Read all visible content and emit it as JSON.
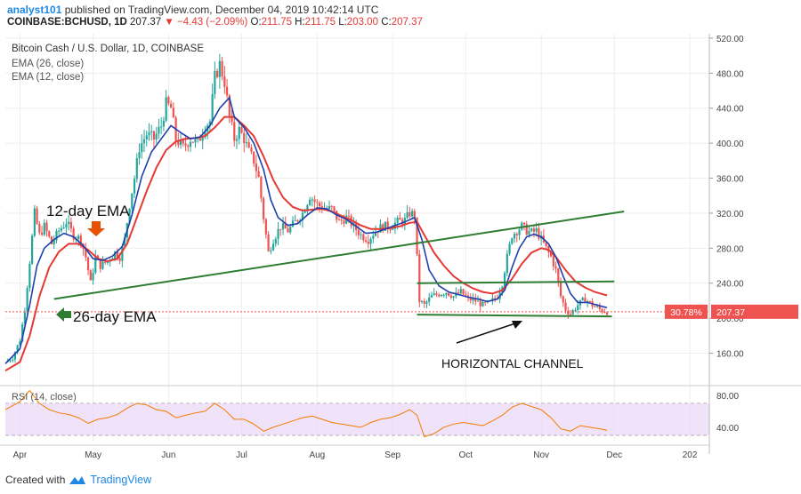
{
  "header": {
    "publisher": "analyst101",
    "published_text": "published on TradingView.com, December 04, 2019 10:42:14 UTC",
    "symbol": "COINBASE:BCHUSD, 1D",
    "last": "207.37",
    "change": "−4.43 (−2.09%)",
    "open_label": "O:",
    "open": "211.75",
    "high_label": "H:",
    "high": "211.75",
    "low_label": "L:",
    "low": "203.00",
    "close_label": "C:",
    "close": "207.37"
  },
  "footer": {
    "created_with": "Created with",
    "brand": "TradingView"
  },
  "colors": {
    "candle_up": "#26a69a",
    "candle_down": "#ef5350",
    "ema26": "#e53935",
    "ema12": "#1e40af",
    "trend": "#2e7d32",
    "rsi": "#f57c00",
    "rsi_band": "#e9d6f7",
    "price_tag": "#ef5350"
  },
  "chart_data": {
    "type": "candlestick",
    "title": "Bitcoin Cash / U.S. Dollar, 1D, COINBASE",
    "series_labels": [
      "EMA (26, close)",
      "EMA (12, close)"
    ],
    "y_ticks": [
      "520.00",
      "480.00",
      "440.00",
      "400.00",
      "360.00",
      "320.00",
      "280.00",
      "240.00",
      "200.00",
      "160.00"
    ],
    "y_tick_values": [
      520,
      480,
      440,
      400,
      360,
      320,
      280,
      240,
      200,
      160
    ],
    "ylim": [
      125,
      525
    ],
    "x_ticks": [
      "Apr",
      "May",
      "Jun",
      "Jul",
      "Aug",
      "Sep",
      "Oct",
      "Nov",
      "Dec",
      "202"
    ],
    "x_tick_days": [
      0,
      30,
      61,
      91,
      122,
      153,
      183,
      214,
      244,
      275
    ],
    "xlim_days": [
      -6,
      283
    ],
    "last_price": 207.37,
    "last_price_label": "207.37",
    "pct_label": "30.78%",
    "price_path": [
      [
        -6,
        150
      ],
      [
        -3,
        155
      ],
      [
        0,
        175
      ],
      [
        2,
        210
      ],
      [
        4,
        265
      ],
      [
        6,
        320
      ],
      [
        8,
        295
      ],
      [
        10,
        305
      ],
      [
        13,
        285
      ],
      [
        16,
        300
      ],
      [
        19,
        310
      ],
      [
        22,
        295
      ],
      [
        25,
        290
      ],
      [
        27,
        270
      ],
      [
        29,
        240
      ],
      [
        31,
        270
      ],
      [
        33,
        260
      ],
      [
        36,
        265
      ],
      [
        39,
        275
      ],
      [
        41,
        270
      ],
      [
        43,
        290
      ],
      [
        45,
        330
      ],
      [
        47,
        360
      ],
      [
        49,
        395
      ],
      [
        52,
        410
      ],
      [
        55,
        405
      ],
      [
        58,
        420
      ],
      [
        60,
        445
      ],
      [
        62,
        440
      ],
      [
        64,
        405
      ],
      [
        67,
        395
      ],
      [
        70,
        405
      ],
      [
        73,
        400
      ],
      [
        76,
        420
      ],
      [
        78,
        425
      ],
      [
        80,
        475
      ],
      [
        82,
        490
      ],
      [
        84,
        470
      ],
      [
        86,
        430
      ],
      [
        88,
        405
      ],
      [
        90,
        415
      ],
      [
        92,
        405
      ],
      [
        94,
        390
      ],
      [
        96,
        380
      ],
      [
        98,
        360
      ],
      [
        100,
        315
      ],
      [
        102,
        275
      ],
      [
        104,
        290
      ],
      [
        107,
        305
      ],
      [
        110,
        300
      ],
      [
        113,
        310
      ],
      [
        116,
        320
      ],
      [
        119,
        340
      ],
      [
        122,
        330
      ],
      [
        125,
        325
      ],
      [
        128,
        325
      ],
      [
        131,
        310
      ],
      [
        134,
        315
      ],
      [
        137,
        305
      ],
      [
        140,
        295
      ],
      [
        143,
        290
      ],
      [
        146,
        300
      ],
      [
        149,
        305
      ],
      [
        152,
        305
      ],
      [
        155,
        310
      ],
      [
        158,
        312
      ],
      [
        160,
        320
      ],
      [
        162,
        318
      ],
      [
        164,
        220
      ],
      [
        166,
        215
      ],
      [
        169,
        225
      ],
      [
        172,
        228
      ],
      [
        175,
        230
      ],
      [
        178,
        225
      ],
      [
        181,
        230
      ],
      [
        184,
        222
      ],
      [
        187,
        220
      ],
      [
        190,
        215
      ],
      [
        193,
        218
      ],
      [
        196,
        225
      ],
      [
        198,
        240
      ],
      [
        200,
        270
      ],
      [
        202,
        295
      ],
      [
        204,
        300
      ],
      [
        206,
        305
      ],
      [
        208,
        300
      ],
      [
        210,
        298
      ],
      [
        212,
        300
      ],
      [
        214,
        290
      ],
      [
        216,
        280
      ],
      [
        218,
        270
      ],
      [
        220,
        255
      ],
      [
        222,
        225
      ],
      [
        224,
        210
      ],
      [
        226,
        205
      ],
      [
        229,
        215
      ],
      [
        232,
        222
      ],
      [
        235,
        215
      ],
      [
        238,
        210
      ],
      [
        241,
        207.37
      ]
    ],
    "ema12_path": [
      [
        -6,
        148
      ],
      [
        0,
        165
      ],
      [
        4,
        215
      ],
      [
        7,
        260
      ],
      [
        10,
        280
      ],
      [
        14,
        290
      ],
      [
        18,
        297
      ],
      [
        22,
        293
      ],
      [
        26,
        283
      ],
      [
        30,
        268
      ],
      [
        34,
        266
      ],
      [
        38,
        271
      ],
      [
        42,
        282
      ],
      [
        46,
        318
      ],
      [
        50,
        362
      ],
      [
        54,
        390
      ],
      [
        58,
        405
      ],
      [
        62,
        420
      ],
      [
        66,
        412
      ],
      [
        70,
        405
      ],
      [
        74,
        407
      ],
      [
        78,
        420
      ],
      [
        82,
        440
      ],
      [
        86,
        452
      ],
      [
        88,
        430
      ],
      [
        92,
        418
      ],
      [
        96,
        400
      ],
      [
        100,
        370
      ],
      [
        103,
        335
      ],
      [
        106,
        315
      ],
      [
        110,
        306
      ],
      [
        114,
        308
      ],
      [
        118,
        318
      ],
      [
        122,
        326
      ],
      [
        126,
        325
      ],
      [
        130,
        318
      ],
      [
        134,
        313
      ],
      [
        138,
        305
      ],
      [
        142,
        297
      ],
      [
        146,
        298
      ],
      [
        150,
        302
      ],
      [
        154,
        306
      ],
      [
        158,
        310
      ],
      [
        162,
        315
      ],
      [
        165,
        290
      ],
      [
        168,
        255
      ],
      [
        172,
        237
      ],
      [
        176,
        230
      ],
      [
        180,
        227
      ],
      [
        184,
        224
      ],
      [
        188,
        222
      ],
      [
        192,
        219
      ],
      [
        196,
        222
      ],
      [
        199,
        232
      ],
      [
        202,
        258
      ],
      [
        205,
        280
      ],
      [
        208,
        293
      ],
      [
        211,
        296
      ],
      [
        214,
        293
      ],
      [
        217,
        285
      ],
      [
        220,
        270
      ],
      [
        223,
        248
      ],
      [
        226,
        228
      ],
      [
        229,
        218
      ],
      [
        233,
        218
      ],
      [
        237,
        215
      ],
      [
        241,
        212
      ]
    ],
    "ema26_path": [
      [
        -6,
        140
      ],
      [
        0,
        150
      ],
      [
        4,
        180
      ],
      [
        8,
        225
      ],
      [
        12,
        258
      ],
      [
        16,
        276
      ],
      [
        20,
        285
      ],
      [
        24,
        285
      ],
      [
        28,
        278
      ],
      [
        32,
        268
      ],
      [
        36,
        265
      ],
      [
        40,
        268
      ],
      [
        44,
        285
      ],
      [
        48,
        315
      ],
      [
        52,
        345
      ],
      [
        56,
        372
      ],
      [
        60,
        392
      ],
      [
        64,
        402
      ],
      [
        68,
        405
      ],
      [
        72,
        406
      ],
      [
        76,
        408
      ],
      [
        80,
        418
      ],
      [
        84,
        430
      ],
      [
        88,
        430
      ],
      [
        92,
        420
      ],
      [
        96,
        408
      ],
      [
        100,
        385
      ],
      [
        104,
        358
      ],
      [
        108,
        338
      ],
      [
        112,
        327
      ],
      [
        116,
        323
      ],
      [
        120,
        324
      ],
      [
        124,
        325
      ],
      [
        128,
        322
      ],
      [
        132,
        317
      ],
      [
        136,
        312
      ],
      [
        140,
        306
      ],
      [
        144,
        302
      ],
      [
        148,
        302
      ],
      [
        152,
        303
      ],
      [
        156,
        305
      ],
      [
        160,
        309
      ],
      [
        163,
        310
      ],
      [
        166,
        295
      ],
      [
        170,
        275
      ],
      [
        174,
        260
      ],
      [
        178,
        248
      ],
      [
        182,
        240
      ],
      [
        186,
        234
      ],
      [
        190,
        230
      ],
      [
        194,
        228
      ],
      [
        198,
        232
      ],
      [
        202,
        245
      ],
      [
        206,
        262
      ],
      [
        210,
        275
      ],
      [
        214,
        280
      ],
      [
        217,
        278
      ],
      [
        220,
        270
      ],
      [
        224,
        255
      ],
      [
        228,
        242
      ],
      [
        232,
        235
      ],
      [
        236,
        230
      ],
      [
        241,
        226
      ]
    ],
    "trendline_upper": [
      [
        14,
        222
      ],
      [
        248,
        322
      ]
    ],
    "channel_top": [
      [
        163,
        240
      ],
      [
        244,
        242
      ]
    ],
    "channel_bottom": [
      [
        163,
        204
      ],
      [
        243,
        202
      ]
    ],
    "annotations": [
      {
        "text": "12-day EMA"
      },
      {
        "text": "26-day EMA"
      },
      {
        "text": "HORIZONTAL CHANNEL"
      }
    ],
    "rsi": {
      "label": "RSI (14, close)",
      "y_ticks": [
        "80.00",
        "40.00"
      ],
      "y_tick_values": [
        80,
        40
      ],
      "band": [
        30,
        70
      ],
      "ylim": [
        22,
        90
      ],
      "path": [
        [
          -6,
          62
        ],
        [
          0,
          72
        ],
        [
          4,
          86
        ],
        [
          8,
          70
        ],
        [
          12,
          62
        ],
        [
          16,
          58
        ],
        [
          20,
          56
        ],
        [
          24,
          52
        ],
        [
          28,
          45
        ],
        [
          32,
          50
        ],
        [
          36,
          52
        ],
        [
          40,
          56
        ],
        [
          44,
          64
        ],
        [
          48,
          70
        ],
        [
          52,
          68
        ],
        [
          56,
          62
        ],
        [
          60,
          60
        ],
        [
          64,
          52
        ],
        [
          68,
          55
        ],
        [
          72,
          58
        ],
        [
          76,
          60
        ],
        [
          80,
          70
        ],
        [
          84,
          62
        ],
        [
          88,
          50
        ],
        [
          92,
          50
        ],
        [
          96,
          44
        ],
        [
          100,
          35
        ],
        [
          104,
          40
        ],
        [
          108,
          44
        ],
        [
          112,
          48
        ],
        [
          116,
          52
        ],
        [
          120,
          54
        ],
        [
          124,
          50
        ],
        [
          128,
          46
        ],
        [
          132,
          44
        ],
        [
          136,
          42
        ],
        [
          140,
          40
        ],
        [
          144,
          46
        ],
        [
          148,
          50
        ],
        [
          152,
          52
        ],
        [
          156,
          56
        ],
        [
          160,
          62
        ],
        [
          163,
          55
        ],
        [
          166,
          28
        ],
        [
          170,
          32
        ],
        [
          174,
          40
        ],
        [
          178,
          44
        ],
        [
          182,
          46
        ],
        [
          186,
          44
        ],
        [
          190,
          42
        ],
        [
          194,
          48
        ],
        [
          198,
          55
        ],
        [
          202,
          65
        ],
        [
          206,
          70
        ],
        [
          210,
          66
        ],
        [
          214,
          62
        ],
        [
          218,
          52
        ],
        [
          222,
          38
        ],
        [
          226,
          35
        ],
        [
          230,
          42
        ],
        [
          234,
          40
        ],
        [
          238,
          38
        ],
        [
          241,
          36
        ]
      ]
    }
  }
}
